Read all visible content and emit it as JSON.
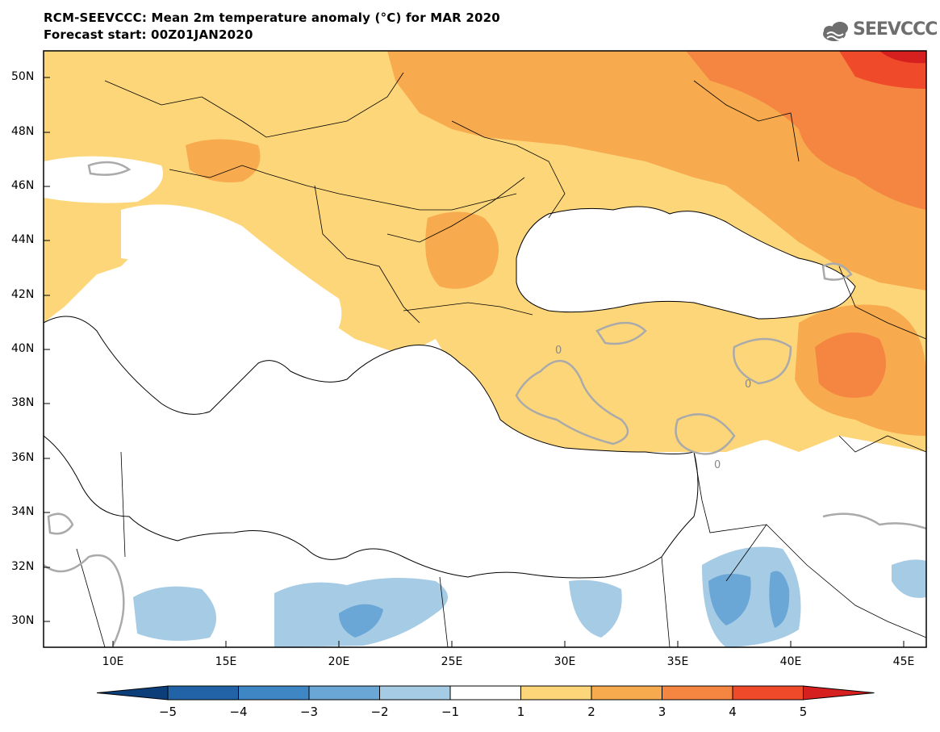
{
  "title": {
    "line1": "RCM-SEEVCCC: Mean 2m temperature anomaly (°C) for MAR 2020",
    "line2": "Forecast start: 00Z01JAN2020"
  },
  "logo": {
    "text": "SEEVCCC",
    "icon": "cloud-icon"
  },
  "axes": {
    "lat_labels": [
      "50N",
      "48N",
      "46N",
      "44N",
      "42N",
      "40N",
      "38N",
      "36N",
      "34N",
      "32N",
      "30N"
    ],
    "lon_labels": [
      "10E",
      "15E",
      "20E",
      "25E",
      "30E",
      "35E",
      "40E",
      "45E"
    ]
  },
  "colorbar": {
    "labels": [
      "−5",
      "−4",
      "−3",
      "−2",
      "−1",
      "1",
      "2",
      "3",
      "4",
      "5"
    ],
    "colors": [
      "#0c3f7a",
      "#2163a6",
      "#3f87c4",
      "#6aa6d6",
      "#a6cbe5",
      "#ffffff",
      "#fdd67a",
      "#f8aa4e",
      "#f48642",
      "#ef4a2a",
      "#d61f1f"
    ]
  },
  "contour_labels": [
    "0",
    "0",
    "0"
  ]
}
